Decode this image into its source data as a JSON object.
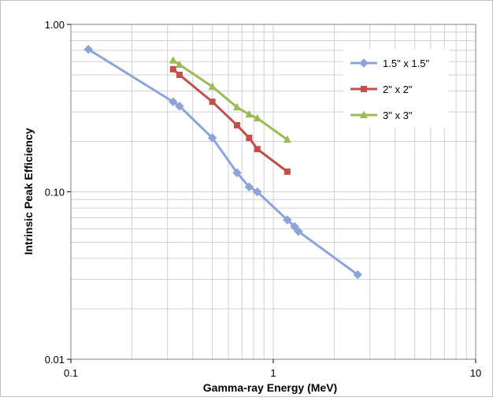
{
  "chart_data": {
    "type": "line",
    "title": "",
    "xlabel": "Gamma-ray Energy (MeV)",
    "ylabel": "Intrinsic Peak Efficiency",
    "x_scale": "log",
    "y_scale": "log",
    "xlim": [
      0.1,
      10
    ],
    "ylim": [
      0.01,
      1.0
    ],
    "x_ticks": [
      0.1,
      1,
      10
    ],
    "x_tick_labels": [
      "0.1",
      "1",
      "10"
    ],
    "y_ticks": [
      0.01,
      0.1,
      1.0
    ],
    "y_tick_labels": [
      "0.01",
      "0.10",
      "1.00"
    ],
    "grid": true,
    "legend_position": "right",
    "series": [
      {
        "name": "1.5\" x 1.5\"",
        "color": "#8EA4D8",
        "marker": "diamond",
        "points": [
          {
            "x": 0.122,
            "y": 0.71
          },
          {
            "x": 0.32,
            "y": 0.345
          },
          {
            "x": 0.344,
            "y": 0.325
          },
          {
            "x": 0.5,
            "y": 0.21
          },
          {
            "x": 0.662,
            "y": 0.13
          },
          {
            "x": 0.76,
            "y": 0.107
          },
          {
            "x": 0.834,
            "y": 0.1
          },
          {
            "x": 1.173,
            "y": 0.068
          },
          {
            "x": 1.274,
            "y": 0.062
          },
          {
            "x": 1.332,
            "y": 0.058
          },
          {
            "x": 2.614,
            "y": 0.032
          }
        ]
      },
      {
        "name": "2\" x 2\"",
        "color": "#C0504D",
        "marker": "square",
        "points": [
          {
            "x": 0.32,
            "y": 0.54
          },
          {
            "x": 0.344,
            "y": 0.5
          },
          {
            "x": 0.5,
            "y": 0.345
          },
          {
            "x": 0.662,
            "y": 0.25
          },
          {
            "x": 0.76,
            "y": 0.21
          },
          {
            "x": 0.834,
            "y": 0.18
          },
          {
            "x": 1.173,
            "y": 0.132
          }
        ]
      },
      {
        "name": "3\" x 3\"",
        "color": "#9BBB59",
        "marker": "triangle",
        "points": [
          {
            "x": 0.32,
            "y": 0.61
          },
          {
            "x": 0.344,
            "y": 0.575
          },
          {
            "x": 0.5,
            "y": 0.425
          },
          {
            "x": 0.662,
            "y": 0.32
          },
          {
            "x": 0.76,
            "y": 0.29
          },
          {
            "x": 0.834,
            "y": 0.275
          },
          {
            "x": 1.173,
            "y": 0.205
          }
        ]
      }
    ]
  }
}
